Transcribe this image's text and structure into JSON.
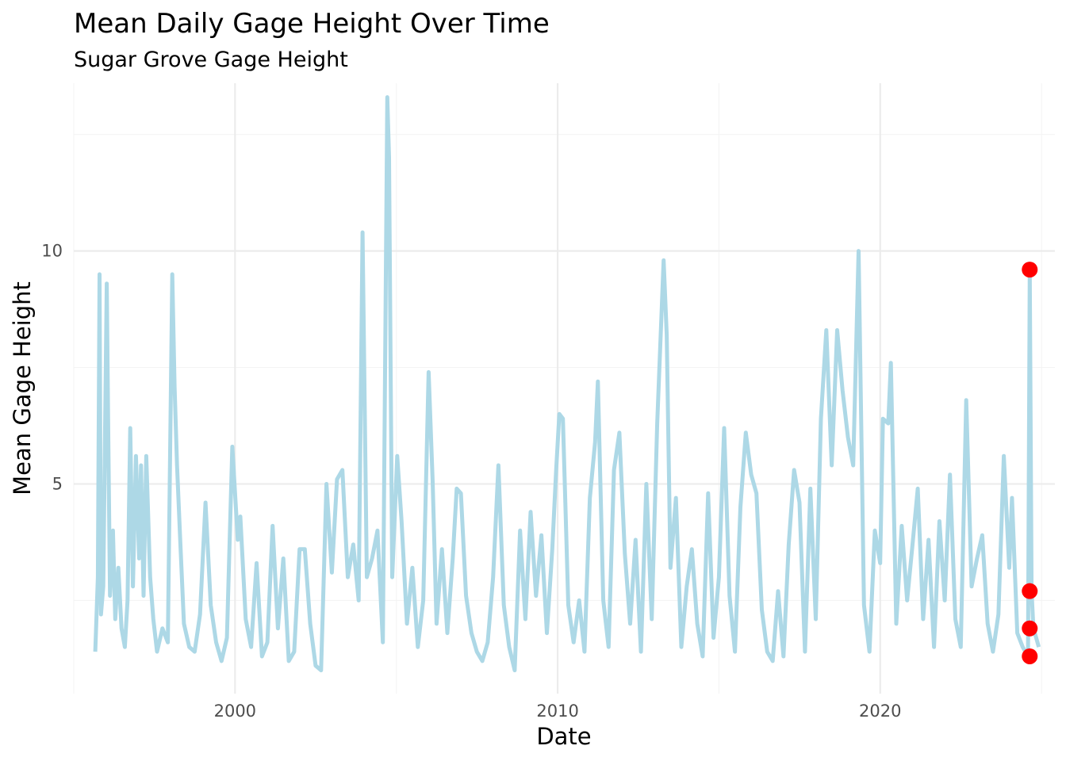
{
  "chart_data": {
    "type": "line",
    "title": "Mean Daily Gage Height Over Time",
    "subtitle": "Sugar Grove Gage Height",
    "xlabel": "Date",
    "ylabel": "Mean Gage Height",
    "x_ticks": [
      "2000",
      "2010",
      "2020"
    ],
    "y_ticks": [
      5,
      10
    ],
    "xlim": [
      "1995-01-01",
      "2025-06-01"
    ],
    "ylim": [
      0.5,
      13.6
    ],
    "grid": true,
    "series": [
      {
        "color": "#add8e6",
        "points": [
          [
            "1995-09-01",
            1.4
          ],
          [
            "1995-10-01",
            3.0
          ],
          [
            "1995-10-20",
            9.5
          ],
          [
            "1995-11-05",
            2.2
          ],
          [
            "1995-12-01",
            2.8
          ],
          [
            "1996-01-10",
            9.3
          ],
          [
            "1996-01-25",
            6.4
          ],
          [
            "1996-02-15",
            2.6
          ],
          [
            "1996-03-20",
            4.0
          ],
          [
            "1996-04-15",
            2.1
          ],
          [
            "1996-05-20",
            3.2
          ],
          [
            "1996-06-25",
            1.9
          ],
          [
            "1996-08-01",
            1.5
          ],
          [
            "1996-09-01",
            2.5
          ],
          [
            "1996-10-01",
            6.2
          ],
          [
            "1996-11-01",
            2.8
          ],
          [
            "1996-12-05",
            5.6
          ],
          [
            "1997-01-10",
            3.4
          ],
          [
            "1997-02-01",
            5.4
          ],
          [
            "1997-03-01",
            2.6
          ],
          [
            "1997-04-01",
            5.6
          ],
          [
            "1997-05-15",
            3.0
          ],
          [
            "1997-06-20",
            2.1
          ],
          [
            "1997-08-01",
            1.4
          ],
          [
            "1997-10-01",
            1.9
          ],
          [
            "1997-12-01",
            1.6
          ],
          [
            "1998-01-20",
            9.5
          ],
          [
            "1998-02-15",
            7.1
          ],
          [
            "1998-03-15",
            5.4
          ],
          [
            "1998-04-20",
            3.8
          ],
          [
            "1998-06-01",
            2.0
          ],
          [
            "1998-08-01",
            1.5
          ],
          [
            "1998-10-01",
            1.4
          ],
          [
            "1998-12-01",
            2.2
          ],
          [
            "1999-02-01",
            4.6
          ],
          [
            "1999-04-01",
            2.4
          ],
          [
            "1999-06-01",
            1.6
          ],
          [
            "1999-08-01",
            1.2
          ],
          [
            "1999-10-01",
            1.7
          ],
          [
            "1999-12-01",
            5.8
          ],
          [
            "2000-02-01",
            3.8
          ],
          [
            "2000-03-01",
            4.3
          ],
          [
            "2000-05-01",
            2.1
          ],
          [
            "2000-07-01",
            1.5
          ],
          [
            "2000-09-01",
            3.3
          ],
          [
            "2000-11-01",
            1.3
          ],
          [
            "2001-01-01",
            1.6
          ],
          [
            "2001-03-01",
            4.1
          ],
          [
            "2001-05-01",
            1.9
          ],
          [
            "2001-07-01",
            3.4
          ],
          [
            "2001-09-01",
            1.2
          ],
          [
            "2001-11-01",
            1.4
          ],
          [
            "2002-01-01",
            3.6
          ],
          [
            "2002-03-01",
            3.6
          ],
          [
            "2002-05-01",
            2.0
          ],
          [
            "2002-07-01",
            1.1
          ],
          [
            "2002-09-01",
            1.0
          ],
          [
            "2002-11-01",
            5.0
          ],
          [
            "2003-01-01",
            3.1
          ],
          [
            "2003-03-01",
            5.1
          ],
          [
            "2003-05-01",
            5.3
          ],
          [
            "2003-07-01",
            3.0
          ],
          [
            "2003-09-01",
            3.7
          ],
          [
            "2003-11-01",
            2.5
          ],
          [
            "2003-12-15",
            10.4
          ],
          [
            "2004-02-01",
            3.0
          ],
          [
            "2004-04-01",
            3.4
          ],
          [
            "2004-06-01",
            4.0
          ],
          [
            "2004-08-01",
            1.6
          ],
          [
            "2004-09-20",
            13.3
          ],
          [
            "2004-10-10",
            12.0
          ],
          [
            "2004-11-15",
            3.0
          ],
          [
            "2005-01-10",
            5.6
          ],
          [
            "2005-03-01",
            4.2
          ],
          [
            "2005-05-01",
            2.0
          ],
          [
            "2005-07-01",
            3.2
          ],
          [
            "2005-09-01",
            1.5
          ],
          [
            "2005-11-01",
            2.5
          ],
          [
            "2006-01-01",
            7.4
          ],
          [
            "2006-02-15",
            5.1
          ],
          [
            "2006-04-01",
            2.0
          ],
          [
            "2006-06-01",
            3.6
          ],
          [
            "2006-08-01",
            1.8
          ],
          [
            "2006-10-01",
            3.4
          ],
          [
            "2006-11-15",
            4.9
          ],
          [
            "2007-01-01",
            4.8
          ],
          [
            "2007-03-01",
            2.6
          ],
          [
            "2007-05-01",
            1.8
          ],
          [
            "2007-07-01",
            1.4
          ],
          [
            "2007-09-01",
            1.2
          ],
          [
            "2007-11-01",
            1.6
          ],
          [
            "2008-01-01",
            3.0
          ],
          [
            "2008-03-01",
            5.4
          ],
          [
            "2008-05-01",
            2.4
          ],
          [
            "2008-07-01",
            1.5
          ],
          [
            "2008-09-01",
            1.0
          ],
          [
            "2008-11-01",
            4.0
          ],
          [
            "2009-01-01",
            2.1
          ],
          [
            "2009-03-01",
            4.4
          ],
          [
            "2009-05-01",
            2.6
          ],
          [
            "2009-07-01",
            3.9
          ],
          [
            "2009-09-01",
            1.8
          ],
          [
            "2009-11-01",
            3.6
          ],
          [
            "2009-12-15",
            5.3
          ],
          [
            "2010-01-20",
            6.5
          ],
          [
            "2010-03-01",
            6.4
          ],
          [
            "2010-05-01",
            2.4
          ],
          [
            "2010-07-01",
            1.6
          ],
          [
            "2010-09-01",
            2.5
          ],
          [
            "2010-11-01",
            1.4
          ],
          [
            "2011-01-01",
            4.7
          ],
          [
            "2011-03-01",
            5.9
          ],
          [
            "2011-04-01",
            7.2
          ],
          [
            "2011-06-01",
            2.5
          ],
          [
            "2011-08-01",
            1.5
          ],
          [
            "2011-10-01",
            5.3
          ],
          [
            "2011-12-01",
            6.1
          ],
          [
            "2012-02-01",
            3.5
          ],
          [
            "2012-04-01",
            2.0
          ],
          [
            "2012-06-01",
            3.8
          ],
          [
            "2012-08-01",
            1.4
          ],
          [
            "2012-10-01",
            5.0
          ],
          [
            "2012-12-01",
            2.1
          ],
          [
            "2013-02-01",
            6.3
          ],
          [
            "2013-04-15",
            9.8
          ],
          [
            "2013-05-20",
            8.2
          ],
          [
            "2013-07-01",
            3.2
          ],
          [
            "2013-09-01",
            4.7
          ],
          [
            "2013-11-01",
            1.5
          ],
          [
            "2014-01-01",
            2.8
          ],
          [
            "2014-03-01",
            3.6
          ],
          [
            "2014-05-01",
            2.0
          ],
          [
            "2014-07-01",
            1.3
          ],
          [
            "2014-09-01",
            4.8
          ],
          [
            "2014-11-01",
            1.7
          ],
          [
            "2015-01-01",
            3.0
          ],
          [
            "2015-03-01",
            6.2
          ],
          [
            "2015-05-01",
            2.6
          ],
          [
            "2015-07-01",
            1.4
          ],
          [
            "2015-09-01",
            4.5
          ],
          [
            "2015-11-01",
            6.1
          ],
          [
            "2016-01-01",
            5.2
          ],
          [
            "2016-03-01",
            4.8
          ],
          [
            "2016-05-01",
            2.3
          ],
          [
            "2016-07-01",
            1.4
          ],
          [
            "2016-09-01",
            1.2
          ],
          [
            "2016-11-01",
            2.7
          ],
          [
            "2017-01-01",
            1.3
          ],
          [
            "2017-03-01",
            3.7
          ],
          [
            "2017-05-01",
            5.3
          ],
          [
            "2017-07-01",
            4.6
          ],
          [
            "2017-09-01",
            1.4
          ],
          [
            "2017-11-01",
            4.9
          ],
          [
            "2018-01-01",
            2.1
          ],
          [
            "2018-03-01",
            6.4
          ],
          [
            "2018-05-01",
            8.3
          ],
          [
            "2018-07-01",
            5.4
          ],
          [
            "2018-09-01",
            8.3
          ],
          [
            "2018-11-01",
            7.0
          ],
          [
            "2019-01-01",
            6.0
          ],
          [
            "2019-03-01",
            5.4
          ],
          [
            "2019-05-01",
            10.0
          ],
          [
            "2019-07-01",
            2.4
          ],
          [
            "2019-09-01",
            1.4
          ],
          [
            "2019-11-01",
            4.0
          ],
          [
            "2020-01-01",
            3.3
          ],
          [
            "2020-02-01",
            6.4
          ],
          [
            "2020-04-01",
            6.3
          ],
          [
            "2020-05-01",
            7.6
          ],
          [
            "2020-07-01",
            2.0
          ],
          [
            "2020-09-01",
            4.1
          ],
          [
            "2020-11-01",
            2.5
          ],
          [
            "2021-01-01",
            3.7
          ],
          [
            "2021-03-01",
            4.9
          ],
          [
            "2021-05-01",
            2.1
          ],
          [
            "2021-07-01",
            3.8
          ],
          [
            "2021-09-01",
            1.5
          ],
          [
            "2021-11-01",
            4.2
          ],
          [
            "2022-01-01",
            2.5
          ],
          [
            "2022-03-01",
            5.2
          ],
          [
            "2022-05-01",
            2.1
          ],
          [
            "2022-07-01",
            1.5
          ],
          [
            "2022-09-01",
            6.8
          ],
          [
            "2022-11-01",
            2.8
          ],
          [
            "2023-01-01",
            3.4
          ],
          [
            "2023-03-01",
            3.9
          ],
          [
            "2023-05-01",
            2.0
          ],
          [
            "2023-07-01",
            1.4
          ],
          [
            "2023-09-01",
            2.2
          ],
          [
            "2023-11-01",
            5.6
          ],
          [
            "2024-01-01",
            3.2
          ],
          [
            "2024-02-01",
            4.7
          ],
          [
            "2024-04-01",
            1.8
          ],
          [
            "2024-06-01",
            1.5
          ],
          [
            "2024-08-01",
            1.3
          ],
          [
            "2024-08-20",
            9.6
          ],
          [
            "2024-09-10",
            2.7
          ],
          [
            "2024-10-01",
            1.9
          ],
          [
            "2024-11-01",
            1.7
          ],
          [
            "2024-12-01",
            1.5
          ]
        ]
      }
    ],
    "highlighted_points": {
      "color": "#ff0000",
      "points": [
        [
          "2024-08-20",
          9.6
        ],
        [
          "2024-08-20",
          2.7
        ],
        [
          "2024-08-20",
          1.9
        ],
        [
          "2024-08-20",
          1.3
        ]
      ]
    }
  }
}
